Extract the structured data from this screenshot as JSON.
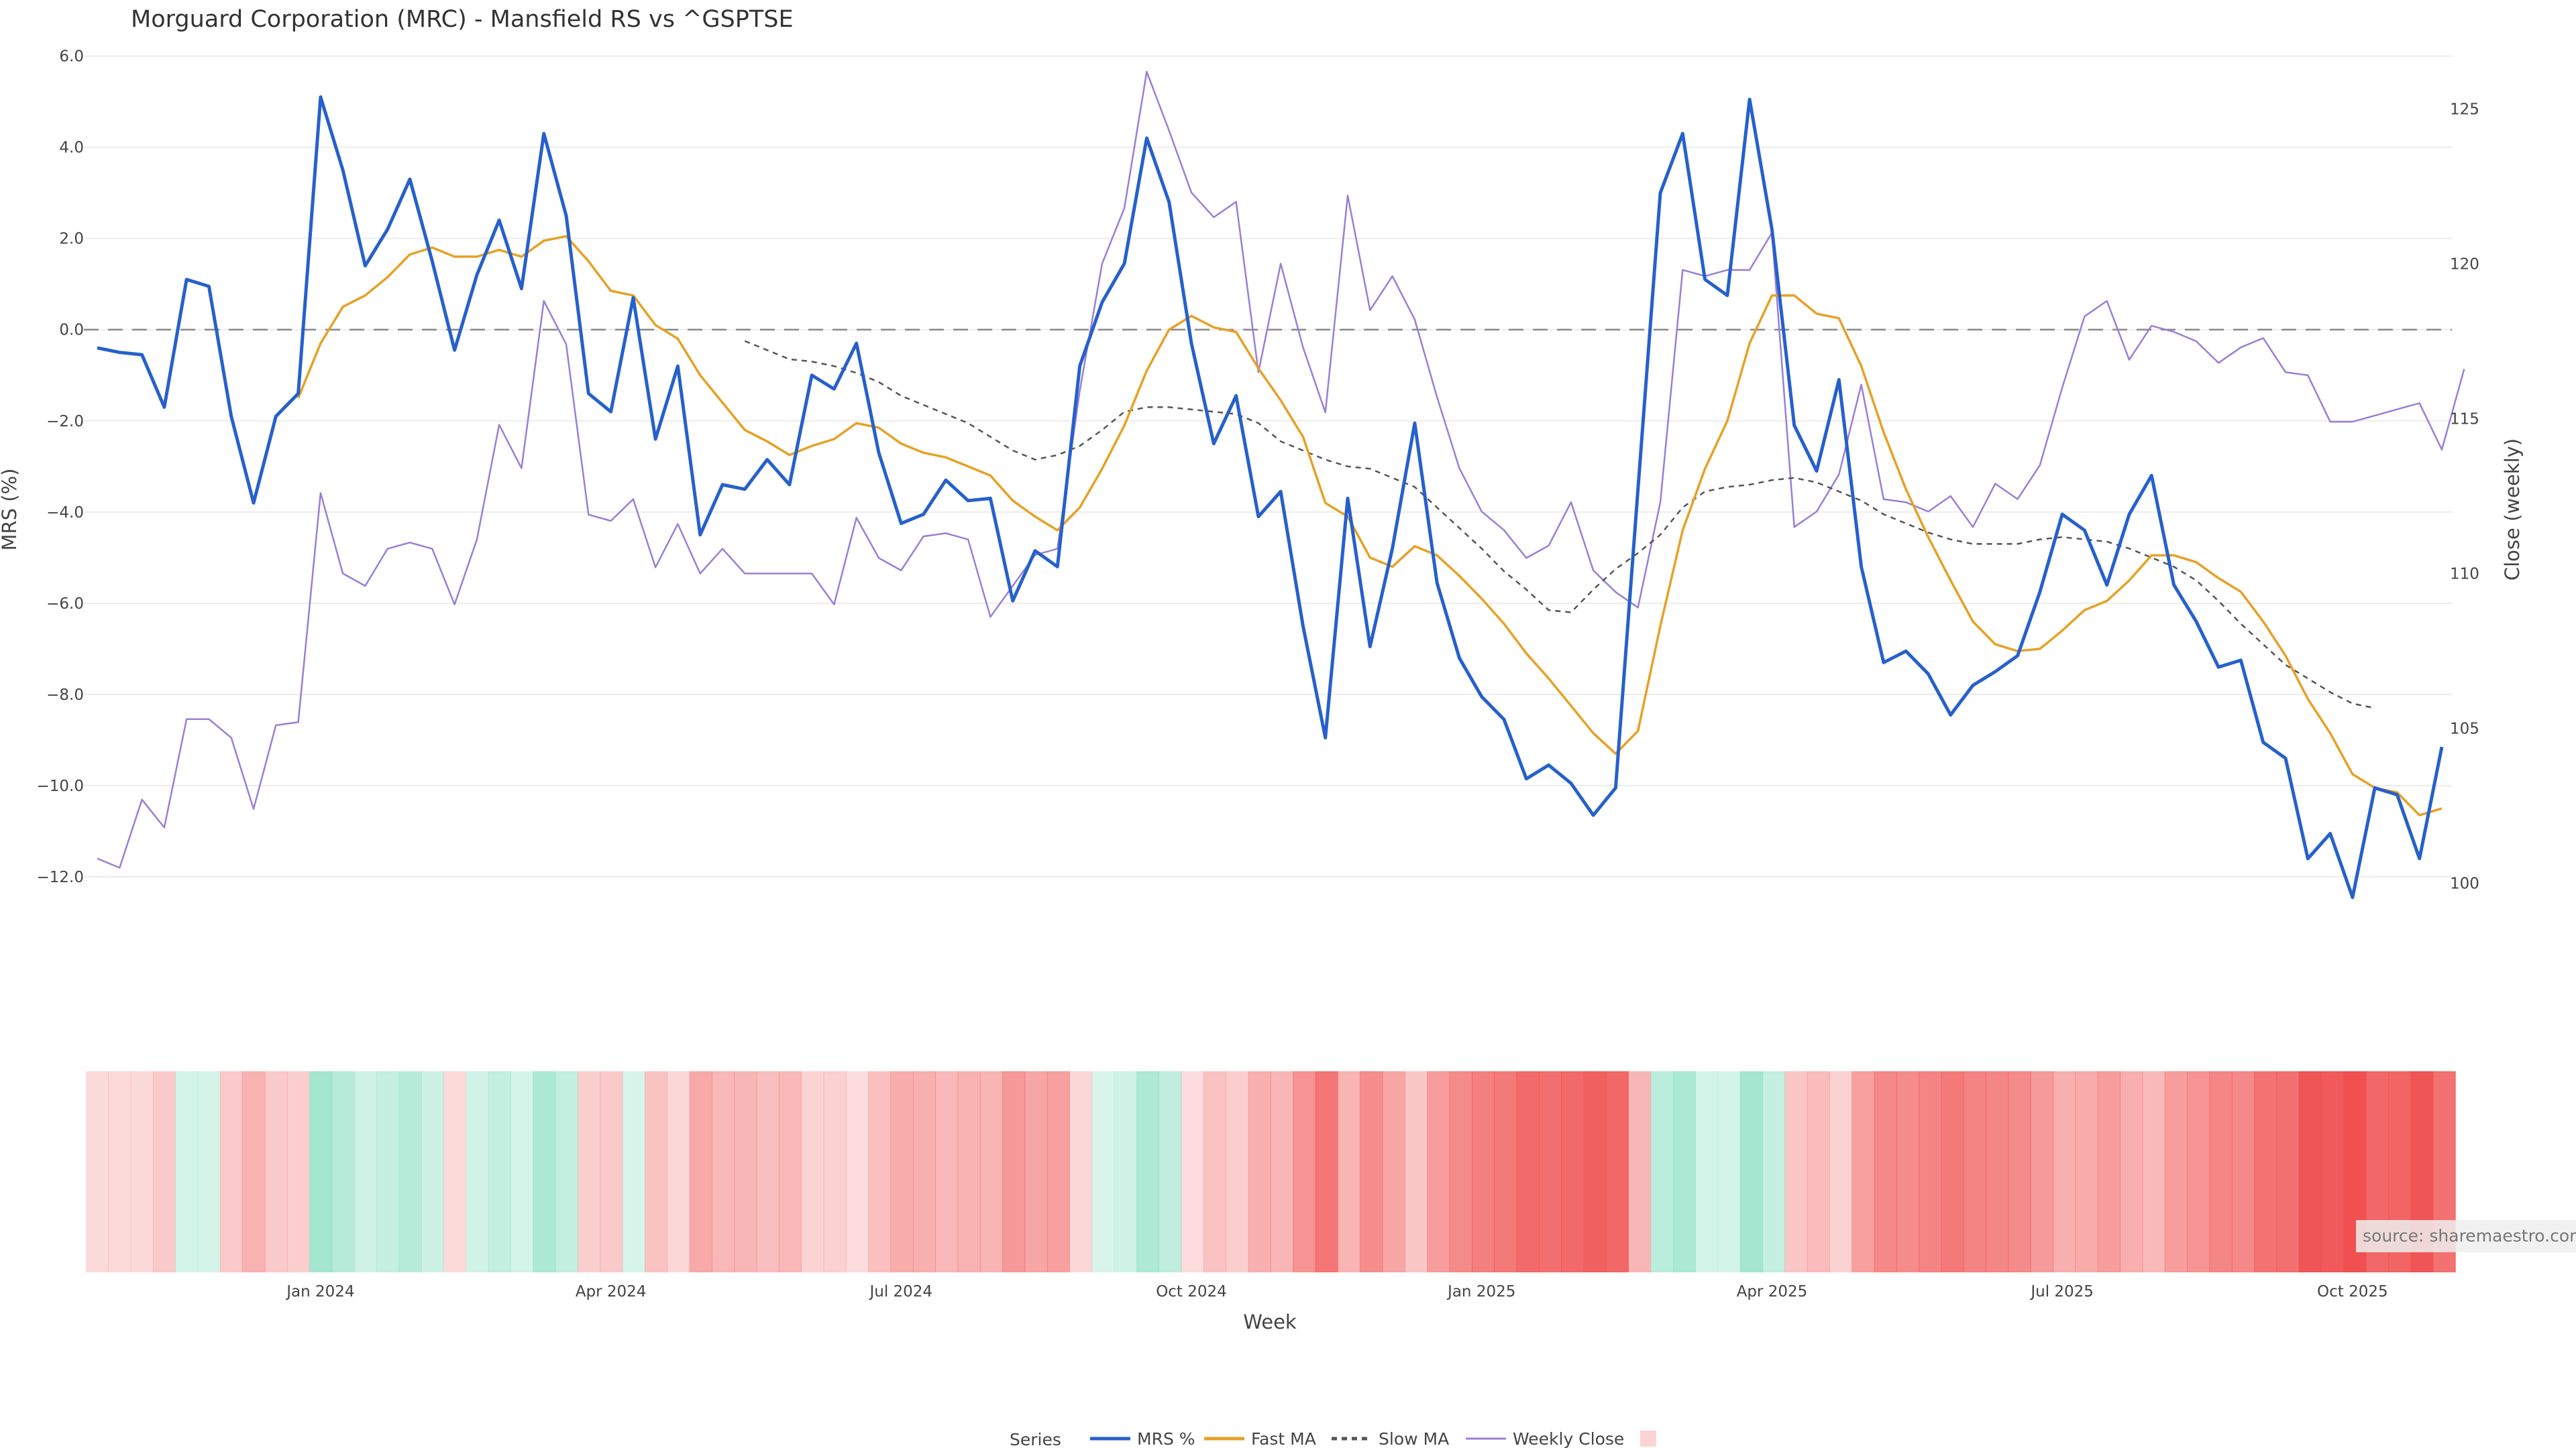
{
  "chart_data": {
    "type": "line",
    "title": "Morguard Corporation (MRC) - Mansfield RS vs ^GSPTSE",
    "xlabel": "Week",
    "ylabel": "MRS (%)",
    "y2label": "Close (weekly)",
    "ylim": [
      -13.5,
      6.2
    ],
    "y2lim": [
      98.0,
      127.0
    ],
    "yticks": [
      6.0,
      4.0,
      2.0,
      0.0,
      -2.0,
      -4.0,
      -6.0,
      -8.0,
      -10.0,
      -12.0
    ],
    "yticklabels": [
      "6.0",
      "4.0",
      "2.0",
      "0.0",
      "−2.0",
      "−4.0",
      "−6.0",
      "−8.0",
      "−10.0",
      "−12.0"
    ],
    "y2ticks": [
      100,
      105,
      110,
      115,
      120,
      125
    ],
    "xticks": [
      {
        "label": "Jan 2024",
        "week": 10
      },
      {
        "label": "Apr 2024",
        "week": 23
      },
      {
        "label": "Jul 2024",
        "week": 36
      },
      {
        "label": "Oct 2024",
        "week": 49
      },
      {
        "label": "Jan 2025",
        "week": 62
      },
      {
        "label": "Apr 2025",
        "week": 75
      },
      {
        "label": "Jul 2025",
        "week": 88
      },
      {
        "label": "Oct 2025",
        "week": 101
      }
    ],
    "reference_line": 0,
    "grid": true,
    "legend": {
      "title": "Series",
      "placement": "bottom-center"
    },
    "source": "source: sharemaestro.com",
    "series": [
      {
        "name": "MRS %",
        "color": "#2660cc",
        "axis": "left",
        "values": [
          -0.4,
          -0.5,
          -0.55,
          -1.7,
          1.1,
          0.95,
          -1.9,
          -3.8,
          -1.9,
          -1.4,
          5.1,
          3.5,
          1.4,
          2.2,
          3.3,
          1.5,
          -0.45,
          1.2,
          2.4,
          0.9,
          4.3,
          2.5,
          -1.4,
          -1.8,
          0.7,
          -2.4,
          -0.8,
          -4.5,
          -3.4,
          -3.5,
          -2.85,
          -3.4,
          -1.0,
          -1.3,
          -0.3,
          -2.7,
          -4.25,
          -4.05,
          -3.3,
          -3.75,
          -3.7,
          -5.95,
          -4.85,
          -5.2,
          -0.8,
          0.6,
          1.45,
          4.2,
          2.8,
          -0.3,
          -2.5,
          -1.45,
          -4.1,
          -3.55,
          -6.5,
          -8.95,
          -3.7,
          -6.95,
          -4.8,
          -2.05,
          -5.55,
          -7.2,
          -8.05,
          -8.55,
          -9.85,
          -9.55,
          -9.95,
          -10.65,
          -10.05,
          -3.5,
          3.0,
          4.3,
          1.1,
          0.75,
          5.05,
          2.2,
          -2.1,
          -3.1,
          -1.1,
          -5.2,
          -7.3,
          -7.05,
          -7.55,
          -8.45,
          -7.8,
          -7.5,
          -7.15,
          -5.75,
          -4.05,
          -4.4,
          -5.6,
          -4.05,
          -3.2,
          -5.6,
          -6.4,
          -7.4,
          -7.25,
          -9.05,
          -9.4,
          -11.6,
          -11.05,
          -12.45,
          -10.05,
          -10.2,
          -11.6,
          -9.15
        ]
      },
      {
        "name": "Fast MA",
        "color": "#e6a125",
        "axis": "left",
        "values": [
          null,
          null,
          null,
          null,
          null,
          null,
          null,
          null,
          null,
          -1.5,
          -0.3,
          0.5,
          0.75,
          1.15,
          1.65,
          1.8,
          1.6,
          1.6,
          1.75,
          1.6,
          1.95,
          2.05,
          1.5,
          0.85,
          0.75,
          0.1,
          -0.2,
          -1.0,
          -1.6,
          -2.2,
          -2.45,
          -2.75,
          -2.55,
          -2.4,
          -2.05,
          -2.15,
          -2.5,
          -2.7,
          -2.8,
          -3.0,
          -3.2,
          -3.75,
          -4.1,
          -4.4,
          -3.9,
          -3.05,
          -2.1,
          -0.9,
          0.0,
          0.3,
          0.05,
          -0.05,
          -0.85,
          -1.55,
          -2.35,
          -3.8,
          -4.1,
          -5.0,
          -5.2,
          -4.75,
          -4.95,
          -5.4,
          -5.9,
          -6.45,
          -7.1,
          -7.65,
          -8.25,
          -8.85,
          -9.3,
          -8.8,
          -6.5,
          -4.4,
          -3.05,
          -2.0,
          -0.3,
          0.75,
          0.75,
          0.35,
          0.25,
          -0.8,
          -2.25,
          -3.5,
          -4.55,
          -5.5,
          -6.4,
          -6.9,
          -7.05,
          -7.0,
          -6.6,
          -6.15,
          -5.95,
          -5.5,
          -4.95,
          -4.95,
          -5.1,
          -5.45,
          -5.75,
          -6.4,
          -7.15,
          -8.1,
          -8.85,
          -9.75,
          -10.05,
          -10.15,
          -10.65,
          -10.5
        ]
      },
      {
        "name": "Slow MA",
        "color": "#555555",
        "axis": "left",
        "dash": true,
        "values": [
          null,
          null,
          null,
          null,
          null,
          null,
          null,
          null,
          null,
          null,
          null,
          null,
          null,
          null,
          null,
          null,
          null,
          null,
          null,
          null,
          null,
          null,
          null,
          null,
          null,
          null,
          null,
          null,
          null,
          -0.25,
          -0.45,
          -0.65,
          -0.7,
          -0.8,
          -0.95,
          -1.15,
          -1.45,
          -1.65,
          -1.85,
          -2.05,
          -2.35,
          -2.65,
          -2.85,
          -2.75,
          -2.55,
          -2.2,
          -1.8,
          -1.7,
          -1.7,
          -1.75,
          -1.8,
          -1.85,
          -2.05,
          -2.45,
          -2.65,
          -2.85,
          -3.0,
          -3.05,
          -3.25,
          -3.45,
          -3.9,
          -4.35,
          -4.8,
          -5.3,
          -5.7,
          -6.15,
          -6.2,
          -5.7,
          -5.25,
          -4.9,
          -4.5,
          -3.9,
          -3.55,
          -3.45,
          -3.4,
          -3.3,
          -3.25,
          -3.35,
          -3.55,
          -3.75,
          -4.05,
          -4.25,
          -4.45,
          -4.6,
          -4.7,
          -4.7,
          -4.7,
          -4.6,
          -4.55,
          -4.6,
          -4.65,
          -4.8,
          -5.0,
          -5.2,
          -5.5,
          -5.95,
          -6.45,
          -6.9,
          -7.35,
          -7.65,
          -7.95,
          -8.2,
          -8.3
        ]
      },
      {
        "name": "Weekly Close",
        "color": "#9a7fd4",
        "axis": "right",
        "values": [
          100.8,
          100.5,
          102.7,
          101.8,
          105.3,
          105.3,
          104.7,
          102.4,
          105.1,
          105.2,
          112.6,
          110.0,
          109.6,
          110.8,
          111.0,
          110.8,
          109.0,
          111.1,
          114.8,
          113.4,
          118.8,
          117.4,
          111.9,
          111.7,
          112.4,
          110.2,
          111.6,
          110.0,
          110.8,
          110.0,
          110.0,
          110.0,
          110.0,
          109.0,
          111.8,
          110.5,
          110.1,
          111.2,
          111.3,
          111.1,
          108.6,
          109.6,
          110.6,
          110.8,
          115.9,
          120.0,
          121.8,
          126.2,
          124.3,
          122.3,
          121.5,
          122.0,
          116.5,
          120.0,
          117.3,
          115.2,
          122.2,
          118.5,
          119.6,
          118.2,
          115.7,
          113.4,
          112.0,
          111.4,
          110.5,
          110.9,
          112.3,
          110.1,
          109.4,
          108.9,
          112.3,
          119.8,
          119.6,
          119.8,
          119.8,
          121.0,
          111.5,
          112.0,
          113.2,
          116.1,
          112.4,
          112.3,
          112.0,
          112.5,
          111.5,
          112.9,
          112.4,
          113.5,
          116.0,
          118.3,
          118.8,
          116.9,
          118.0,
          117.8,
          117.5,
          116.8,
          117.3,
          117.6,
          116.5,
          116.4,
          114.9,
          114.9,
          115.1,
          115.3,
          115.5,
          114.0,
          116.6
        ]
      }
    ],
    "heat_strip": {
      "neg_color": "#f05050",
      "pos_color": "#7ddcbc"
    }
  }
}
